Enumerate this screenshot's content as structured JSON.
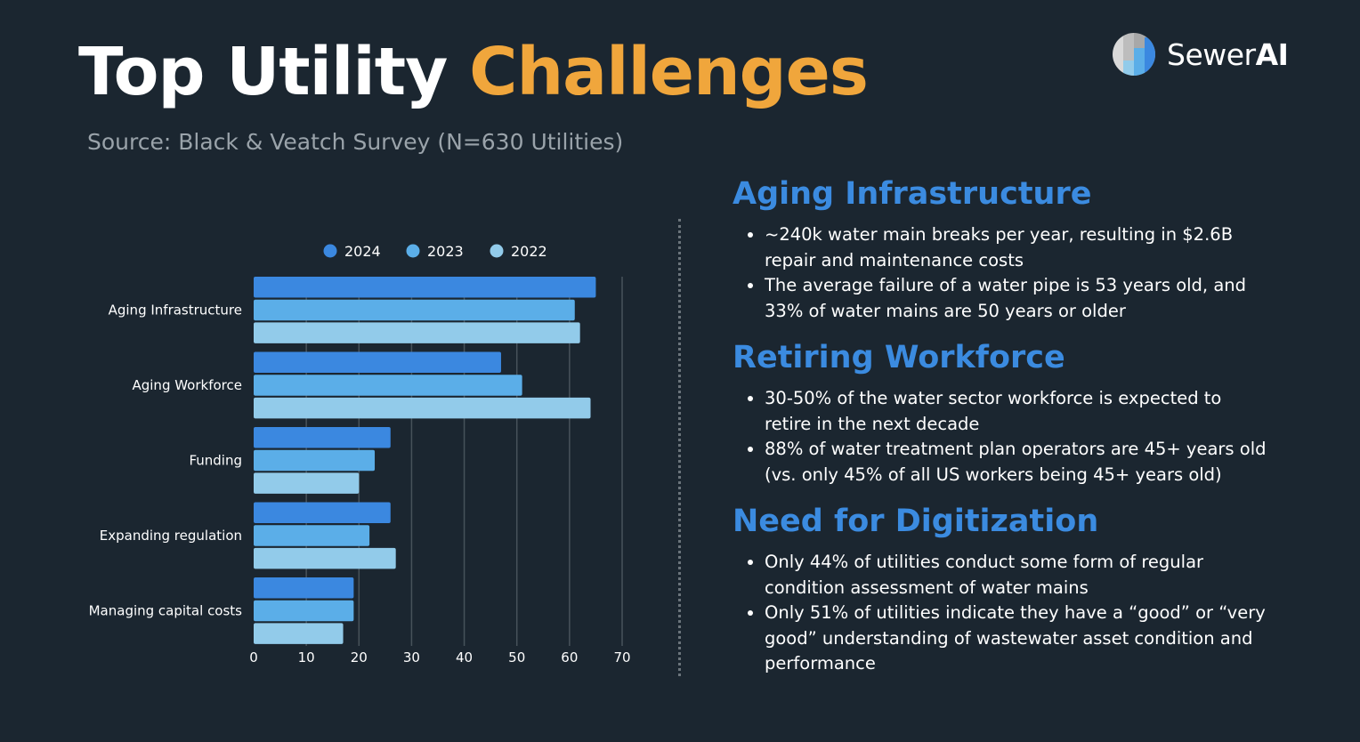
{
  "header": {
    "title_part1": "Top Utility ",
    "title_part2": "Challenges",
    "subtitle": "Source: Black & Veatch Survey (N=630 Utilities)"
  },
  "logo": {
    "text_regular": "Sewer",
    "text_bold": "AI"
  },
  "colors": {
    "background": "#1b2630",
    "accent_orange": "#f0a63c",
    "heading_blue": "#3b8be0",
    "series_2024": "#3b88e0",
    "series_2023": "#5baee8",
    "series_2022": "#92cbea"
  },
  "chart_data": {
    "type": "bar",
    "orientation": "horizontal",
    "categories": [
      "Aging Infrastructure",
      "Aging Workforce",
      "Funding",
      "Expanding regulation",
      "Managing capital costs"
    ],
    "series": [
      {
        "name": "2024",
        "values": [
          65,
          47,
          26,
          26,
          19
        ],
        "color": "#3b88e0"
      },
      {
        "name": "2023",
        "values": [
          61,
          51,
          23,
          22,
          19
        ],
        "color": "#5baee8"
      },
      {
        "name": "2022",
        "values": [
          62,
          64,
          20,
          27,
          17
        ],
        "color": "#92cbea"
      }
    ],
    "xlim": [
      0,
      70
    ],
    "xticks": [
      0,
      10,
      20,
      30,
      40,
      50,
      60,
      70
    ],
    "grid": true,
    "legend": "top"
  },
  "sections": [
    {
      "title": "Aging Infrastructure",
      "bullets": [
        "~240k water main breaks per year, resulting in $2.6B repair and maintenance costs",
        "The average failure of a water pipe is 53 years old, and 33% of water mains are 50 years or older"
      ]
    },
    {
      "title": "Retiring Workforce",
      "bullets": [
        "30-50% of the water sector workforce is expected to retire in the next decade",
        "88% of water treatment plan operators are 45+ years old (vs. only 45% of all US workers being 45+ years old)"
      ]
    },
    {
      "title": "Need for Digitization",
      "bullets": [
        "Only 44% of utilities conduct some form of regular condition assessment of water mains",
        "Only 51% of utilities indicate they have a “good” or “very good” understanding of wastewater asset condition and performance"
      ]
    }
  ]
}
